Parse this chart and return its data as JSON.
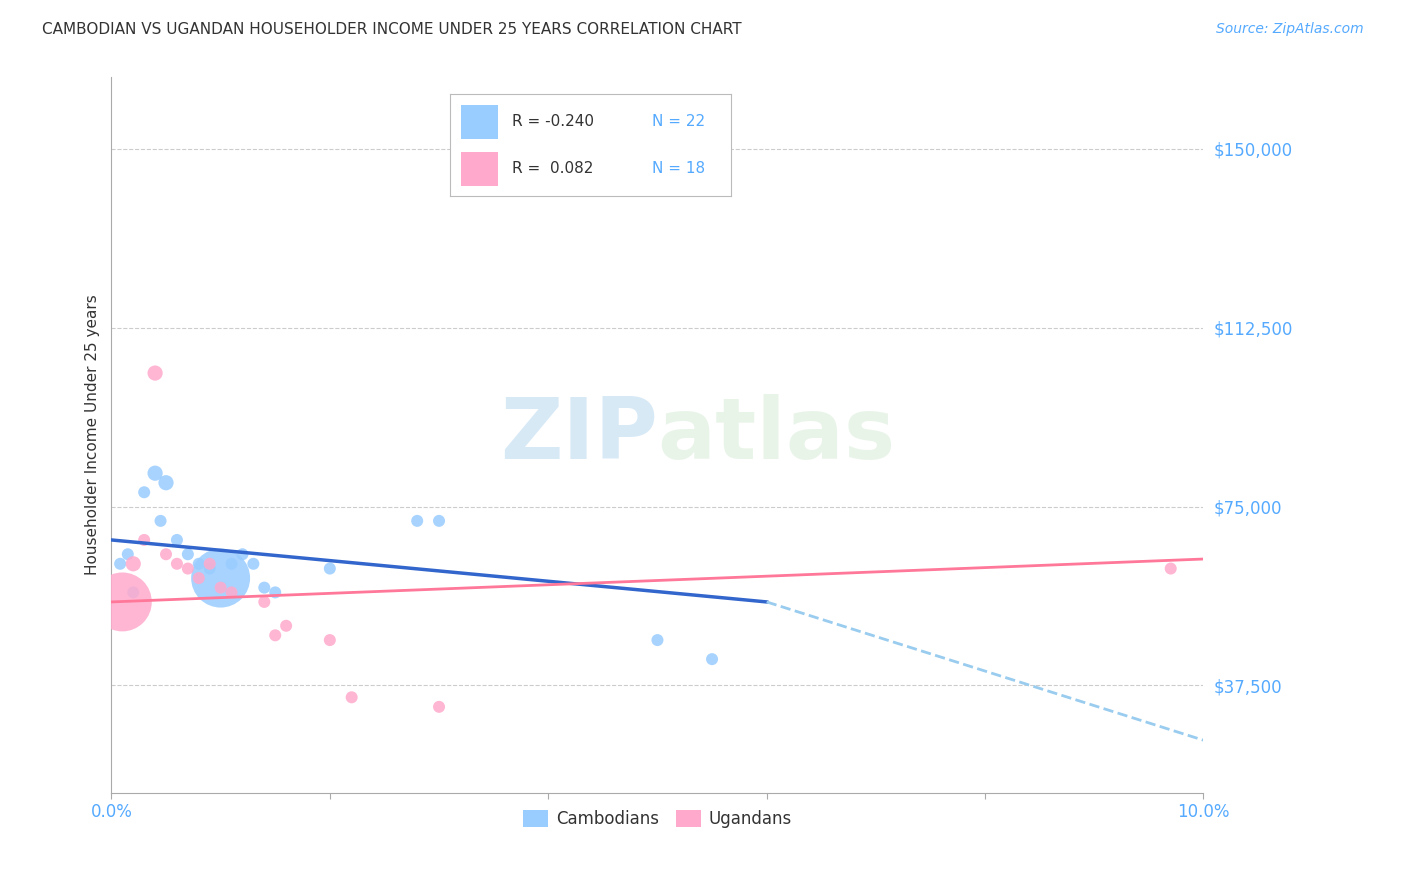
{
  "title": "CAMBODIAN VS UGANDAN HOUSEHOLDER INCOME UNDER 25 YEARS CORRELATION CHART",
  "source": "Source: ZipAtlas.com",
  "ylabel": "Householder Income Under 25 years",
  "xlim": [
    0.0,
    0.1
  ],
  "ylim": [
    15000,
    165000
  ],
  "yticks": [
    37500,
    75000,
    112500,
    150000
  ],
  "ytick_labels": [
    "$37,500",
    "$75,000",
    "$112,500",
    "$150,000"
  ],
  "xticks": [
    0.0,
    0.02,
    0.04,
    0.06,
    0.08,
    0.1
  ],
  "xtick_labels": [
    "0.0%",
    "",
    "",
    "",
    "",
    "10.0%"
  ],
  "r_cambodian": -0.24,
  "n_cambodian": 22,
  "r_ugandan": 0.082,
  "n_ugandan": 18,
  "cambodian_color": "#99ccff",
  "ugandan_color": "#ffaacc",
  "trend_cambodian_solid_color": "#3366cc",
  "trend_cambodian_dash_color": "#99ccee",
  "trend_ugandan_color": "#ff7799",
  "background_color": "#ffffff",
  "grid_color": "#cccccc",
  "title_color": "#333333",
  "axis_label_color": "#333333",
  "tick_label_color": "#55aaff",
  "watermark_color": "#d0e8f8",
  "cambodian_points": [
    [
      0.0008,
      63000,
      25
    ],
    [
      0.0015,
      65000,
      25
    ],
    [
      0.002,
      57000,
      25
    ],
    [
      0.003,
      78000,
      25
    ],
    [
      0.004,
      82000,
      40
    ],
    [
      0.0045,
      72000,
      25
    ],
    [
      0.005,
      80000,
      40
    ],
    [
      0.006,
      68000,
      25
    ],
    [
      0.007,
      65000,
      25
    ],
    [
      0.008,
      63000,
      25
    ],
    [
      0.009,
      62000,
      25
    ],
    [
      0.01,
      60000,
      600
    ],
    [
      0.011,
      63000,
      25
    ],
    [
      0.012,
      65000,
      25
    ],
    [
      0.013,
      63000,
      25
    ],
    [
      0.014,
      58000,
      25
    ],
    [
      0.015,
      57000,
      25
    ],
    [
      0.02,
      62000,
      25
    ],
    [
      0.028,
      72000,
      25
    ],
    [
      0.03,
      72000,
      25
    ],
    [
      0.05,
      47000,
      25
    ],
    [
      0.055,
      43000,
      25
    ]
  ],
  "ugandan_points": [
    [
      0.001,
      55000,
      600
    ],
    [
      0.002,
      63000,
      40
    ],
    [
      0.003,
      68000,
      25
    ],
    [
      0.004,
      103000,
      40
    ],
    [
      0.005,
      65000,
      25
    ],
    [
      0.006,
      63000,
      25
    ],
    [
      0.007,
      62000,
      25
    ],
    [
      0.008,
      60000,
      25
    ],
    [
      0.009,
      63000,
      25
    ],
    [
      0.01,
      58000,
      25
    ],
    [
      0.011,
      57000,
      25
    ],
    [
      0.014,
      55000,
      25
    ],
    [
      0.015,
      48000,
      25
    ],
    [
      0.016,
      50000,
      25
    ],
    [
      0.02,
      47000,
      25
    ],
    [
      0.022,
      35000,
      25
    ],
    [
      0.03,
      33000,
      25
    ],
    [
      0.097,
      62000,
      25
    ]
  ],
  "trend_c_x0": 0.0,
  "trend_c_y0": 68000,
  "trend_c_x1": 0.06,
  "trend_c_y1": 55000,
  "trend_c_dash_x0": 0.06,
  "trend_c_dash_y0": 55000,
  "trend_c_dash_x1": 0.1,
  "trend_c_dash_y1": 26000,
  "trend_u_x0": 0.0,
  "trend_u_y0": 55000,
  "trend_u_x1": 0.1,
  "trend_u_y1": 64000
}
